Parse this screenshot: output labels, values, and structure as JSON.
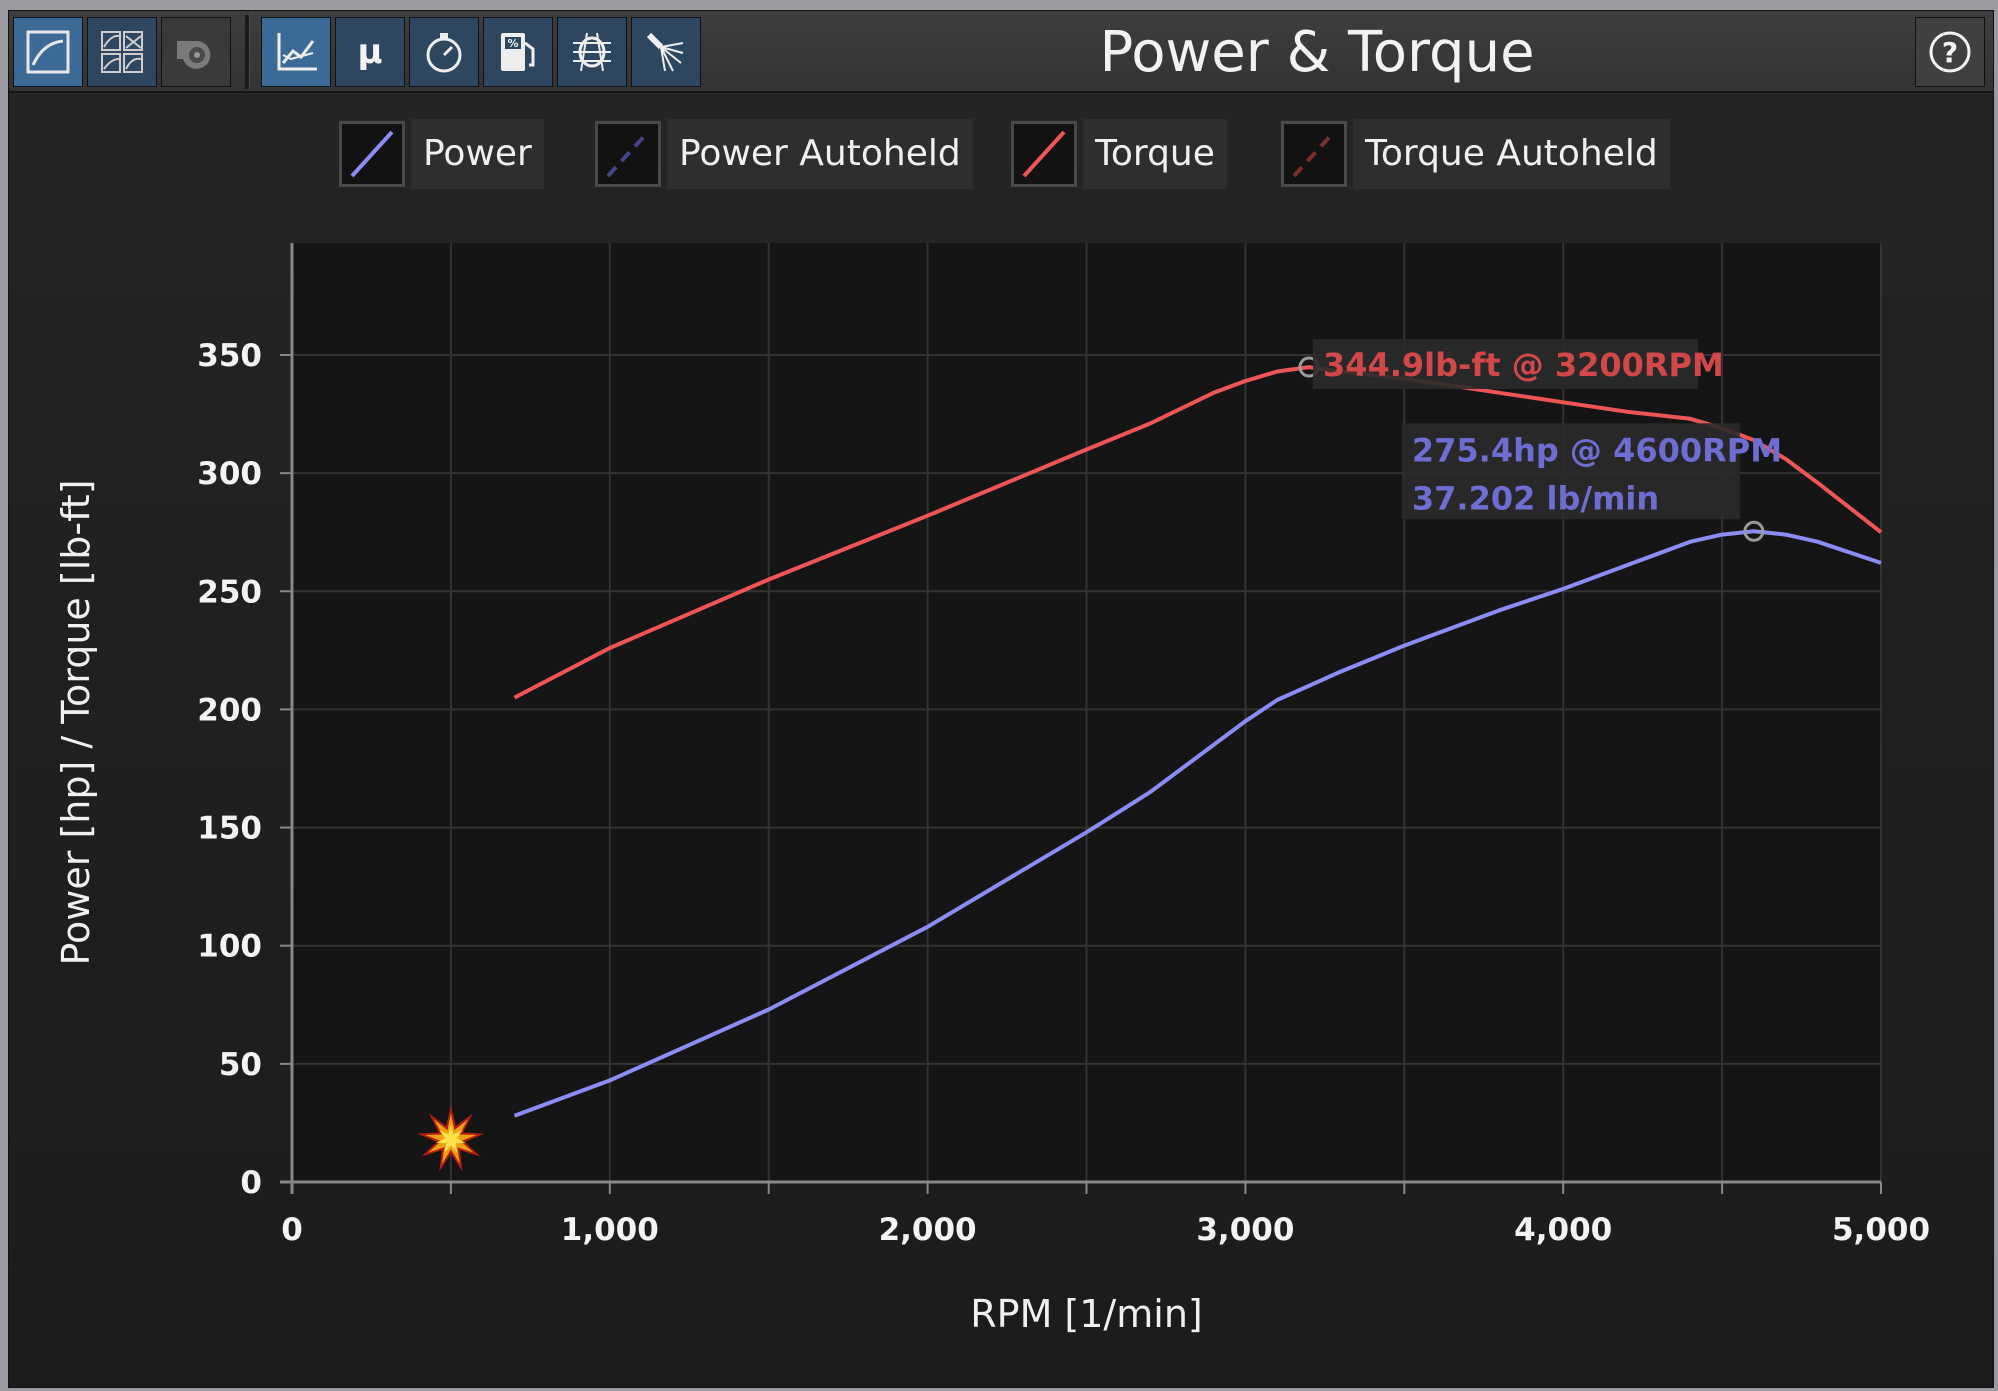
{
  "app": {
    "title": "Power & Torque",
    "toolbar_left": [
      {
        "name": "power-curve-view-icon",
        "active": true
      },
      {
        "name": "grid-charts-view-icon",
        "active": false
      },
      {
        "name": "turbo-icon",
        "active": false
      }
    ],
    "toolbar_right": [
      {
        "name": "axes-chart-icon",
        "active": true
      },
      {
        "name": "mu-friction-icon",
        "label": "μ",
        "active": false
      },
      {
        "name": "stopwatch-icon",
        "active": false
      },
      {
        "name": "fuel-percent-icon",
        "label": "%",
        "active": false
      },
      {
        "name": "engine-cooling-icon",
        "active": false
      },
      {
        "name": "spray-injector-icon",
        "active": false
      }
    ],
    "help_label": "?"
  },
  "legend": [
    {
      "label": "Power",
      "color": "#8c8cf5",
      "style": "solid"
    },
    {
      "label": "Power Autoheld",
      "color": "#44448a",
      "style": "dashed"
    },
    {
      "label": "Torque",
      "color": "#f05555",
      "style": "solid"
    },
    {
      "label": "Torque Autoheld",
      "color": "#7a2e2e",
      "style": "dashed"
    }
  ],
  "chart_data": {
    "type": "line",
    "xlabel": "RPM [1/min]",
    "ylabel": "Power [hp] / Torque [lb-ft]",
    "xlim": [
      0,
      5000
    ],
    "ylim": [
      0,
      380
    ],
    "xticks": [
      0,
      1000,
      2000,
      3000,
      4000,
      5000
    ],
    "xtick_labels": [
      "0",
      "1,000",
      "2,000",
      "3,000",
      "4,000",
      "5,000"
    ],
    "yticks": [
      0,
      50,
      100,
      150,
      200,
      250,
      300,
      350
    ],
    "ytick_labels": [
      "0",
      "50",
      "100",
      "150",
      "200",
      "250",
      "300",
      "350"
    ],
    "grid": true,
    "x": [
      700,
      1000,
      1500,
      2000,
      2500,
      2700,
      2900,
      3000,
      3100,
      3200,
      3300,
      3500,
      3800,
      4000,
      4200,
      4400,
      4500,
      4600,
      4700,
      4800,
      5000
    ],
    "series": [
      {
        "name": "Power",
        "color": "#8c8cf5",
        "values": [
          28,
          43,
          73,
          108,
          148,
          165,
          185,
          195,
          204,
          210,
          216,
          227,
          242,
          251,
          261,
          271,
          274,
          275.4,
          274,
          271,
          262
        ]
      },
      {
        "name": "Torque",
        "color": "#f05555",
        "values": [
          205,
          226,
          255,
          282,
          310,
          321,
          334,
          339,
          343,
          344.9,
          343,
          340,
          334,
          330,
          326,
          323,
          319,
          314,
          306,
          296,
          275
        ]
      }
    ],
    "annotations": [
      {
        "text": "344.9lb-ft @ 3200RPM",
        "color": "#d24848",
        "x": 3200,
        "y": 344.9
      },
      {
        "text": "275.4hp @ 4600RPM",
        "color": "#6e6ed2",
        "x": 4600,
        "y": 275.4
      },
      {
        "text": "37.202 lb/min",
        "color": "#6e6ed2"
      }
    ],
    "marker": {
      "name": "explosion-marker-icon",
      "x": 500,
      "y": 18
    }
  }
}
